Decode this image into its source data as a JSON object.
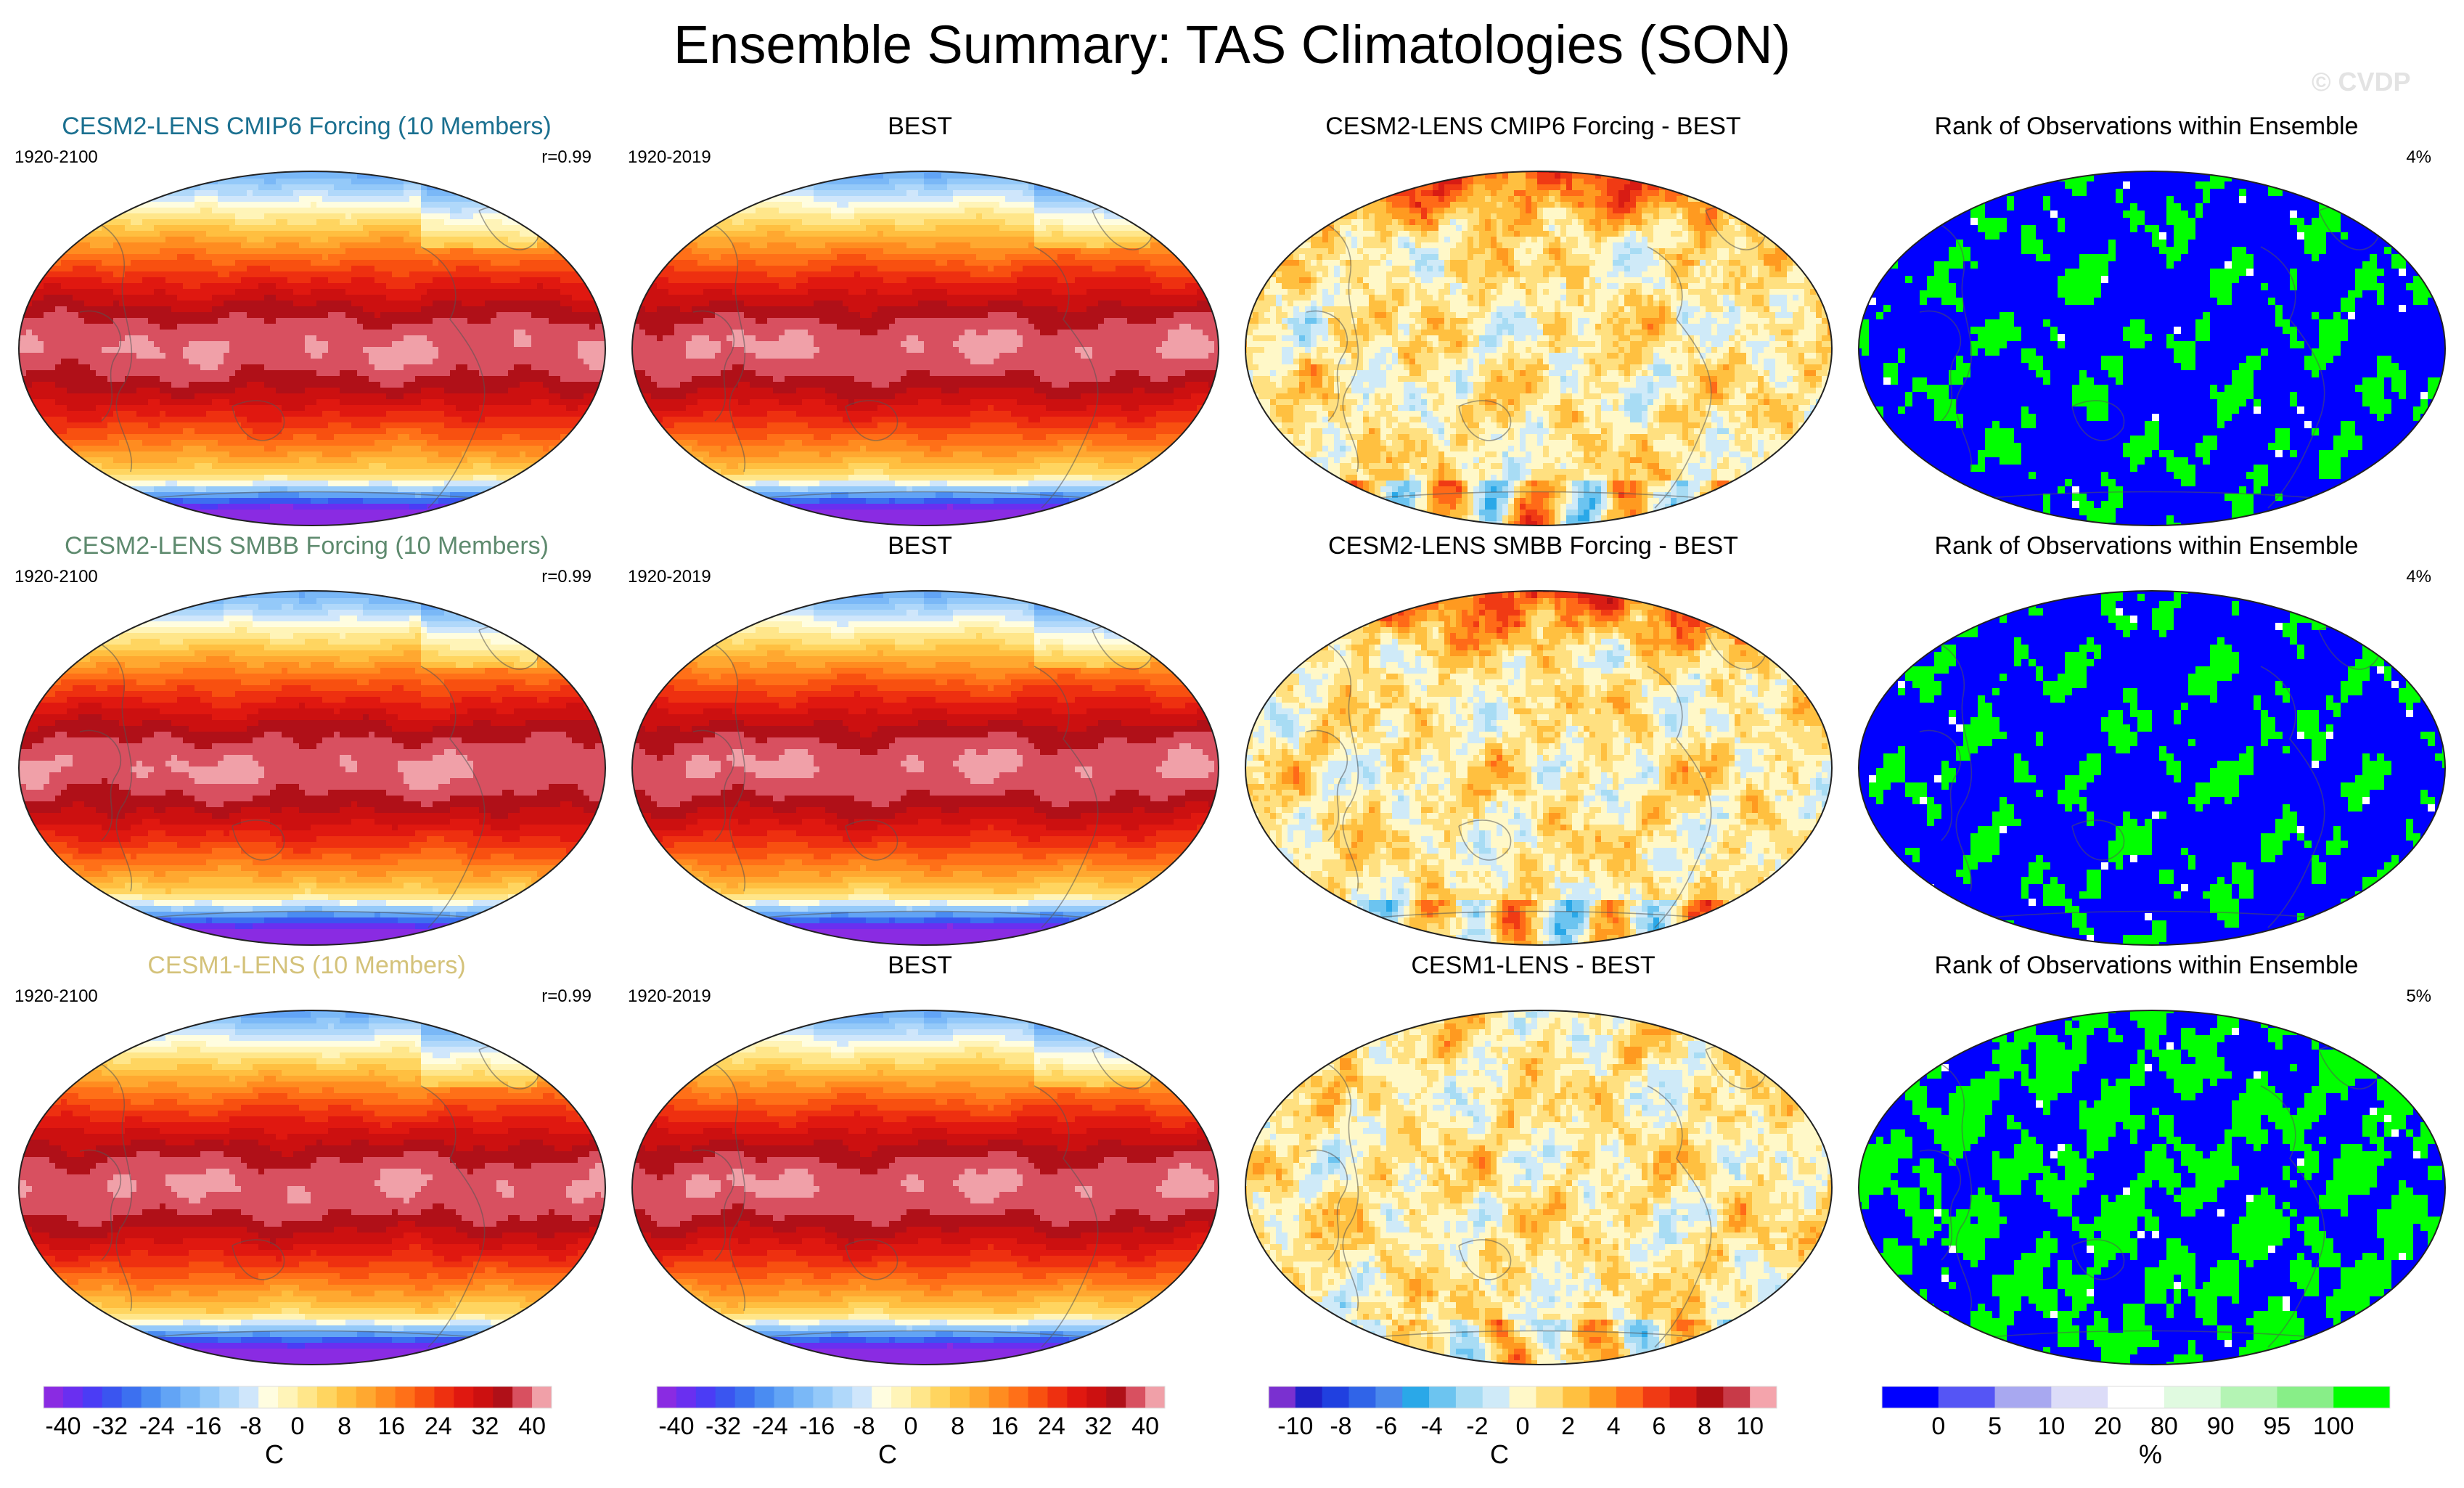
{
  "figure": {
    "title": "Ensemble Summary: TAS Climatologies (SON)",
    "watermark": "© CVDP"
  },
  "colors": {
    "row1_title": "#1b7090",
    "row2_title": "#5e8a6e",
    "row3_title": "#d4c27a"
  },
  "chart_data": [
    {
      "type": "heatmap",
      "panel": "row1-ensemble-mean",
      "title": "CESM2-LENS CMIP6 Forcing (10 Members)",
      "period": "1920-2100",
      "stat": "r=0.99",
      "projection": "Robinson",
      "field": "Surface air temperature climatology",
      "units": "C",
      "colorbar": "temperature"
    },
    {
      "type": "heatmap",
      "panel": "row1-observations",
      "title": "BEST",
      "period": "1920-2019",
      "projection": "Robinson",
      "units": "C",
      "colorbar": "temperature"
    },
    {
      "type": "heatmap",
      "panel": "row1-difference",
      "title": "CESM2-LENS CMIP6 Forcing - BEST",
      "projection": "Robinson",
      "units": "C",
      "colorbar": "difference"
    },
    {
      "type": "heatmap",
      "panel": "row1-rank",
      "title": "Rank of Observations within Ensemble",
      "stat": "4%",
      "projection": "Robinson",
      "units": "%",
      "colorbar": "rank"
    },
    {
      "type": "heatmap",
      "panel": "row2-ensemble-mean",
      "title": "CESM2-LENS SMBB Forcing (10 Members)",
      "period": "1920-2100",
      "stat": "r=0.99",
      "units": "C",
      "colorbar": "temperature"
    },
    {
      "type": "heatmap",
      "panel": "row2-observations",
      "title": "BEST",
      "period": "1920-2019",
      "units": "C",
      "colorbar": "temperature"
    },
    {
      "type": "heatmap",
      "panel": "row2-difference",
      "title": "CESM2-LENS SMBB Forcing - BEST",
      "units": "C",
      "colorbar": "difference"
    },
    {
      "type": "heatmap",
      "panel": "row2-rank",
      "title": "Rank of Observations within Ensemble",
      "stat": "4%",
      "units": "%",
      "colorbar": "rank"
    },
    {
      "type": "heatmap",
      "panel": "row3-ensemble-mean",
      "title": "CESM1-LENS (10 Members)",
      "period": "1920-2100",
      "stat": "r=0.99",
      "units": "C",
      "colorbar": "temperature"
    },
    {
      "type": "heatmap",
      "panel": "row3-observations",
      "title": "BEST",
      "period": "1920-2019",
      "units": "C",
      "colorbar": "temperature"
    },
    {
      "type": "heatmap",
      "panel": "row3-difference",
      "title": "CESM1-LENS - BEST",
      "units": "C",
      "colorbar": "difference"
    },
    {
      "type": "heatmap",
      "panel": "row3-rank",
      "title": "Rank of Observations within Ensemble",
      "stat": "5%",
      "units": "%",
      "colorbar": "rank"
    }
  ],
  "colorbars": {
    "temperature": {
      "unit": "C",
      "ticks": [
        "-40",
        "-32",
        "-24",
        "-16",
        "-8",
        "0",
        "8",
        "16",
        "24",
        "32",
        "40"
      ],
      "colors": [
        "#8a2be2",
        "#6a2ff0",
        "#4b3cf5",
        "#3a55f0",
        "#3c70f0",
        "#4a8cf2",
        "#62a4f5",
        "#7ab8f7",
        "#94c9f9",
        "#b0d8fa",
        "#cfe6fb",
        "#fffde0",
        "#fff4b8",
        "#ffe68a",
        "#ffd560",
        "#ffbf40",
        "#ffa830",
        "#ff8c20",
        "#ff7018",
        "#f85010",
        "#ee3010",
        "#e01810",
        "#cc1010",
        "#b01018",
        "#d85060",
        "#f0a0a8"
      ]
    },
    "difference": {
      "unit": "C",
      "ticks": [
        "-10",
        "-8",
        "-6",
        "-4",
        "-2",
        "0",
        "2",
        "4",
        "6",
        "8",
        "10"
      ],
      "colors": [
        "#7a30d0",
        "#2020c8",
        "#2040e0",
        "#3064e8",
        "#4a88ec",
        "#2aa8e8",
        "#6cc4f0",
        "#a8dcf4",
        "#cfeaf8",
        "#fff8c8",
        "#ffe080",
        "#ffc040",
        "#ff9a20",
        "#ff6a18",
        "#f03a14",
        "#d81c14",
        "#b01014",
        "#c83a48",
        "#f4a4ac"
      ],
      "minor_ticks": 10
    },
    "rank": {
      "unit": "%",
      "ticks": [
        "0",
        "5",
        "10",
        "20",
        "80",
        "90",
        "95",
        "100"
      ],
      "colors": [
        "#0000ff",
        "#5555f5",
        "#a8a8f0",
        "#dcdcf8",
        "#ffffff",
        "#e0fae0",
        "#b4f4b4",
        "#88ee88",
        "#00ff00"
      ]
    }
  }
}
